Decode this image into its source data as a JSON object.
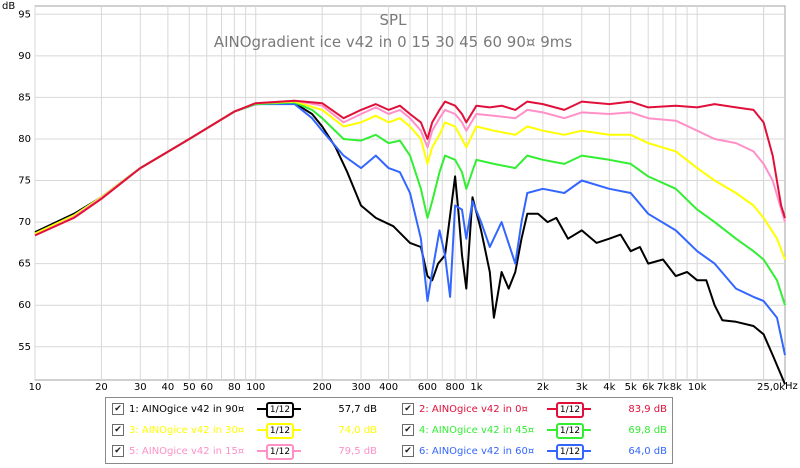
{
  "chart_data": {
    "type": "line",
    "y_unit_label": "dB",
    "x_unit_label": "Hz",
    "title": "SPL",
    "subtitle": "AINOgradient ice v42 in 0 15 30 45 60 90¤ 9ms",
    "x_scale": "log",
    "xlim": [
      10,
      25000
    ],
    "ylim": [
      51,
      96
    ],
    "grid": true,
    "y_ticks": [
      "95",
      "90",
      "85",
      "80",
      "75",
      "70",
      "65",
      "60",
      "55"
    ],
    "x_ticks": [
      "10",
      "20",
      "30",
      "40",
      "50",
      "60",
      "80",
      "100",
      "200",
      "300",
      "400",
      "600",
      "800",
      "1k",
      "2k",
      "3k",
      "4k",
      "5k",
      "6k",
      "7k",
      "8k",
      "10k",
      "25,0k"
    ],
    "series": [
      {
        "name": "1: AINOgice v42 in 90¤",
        "color": "#000000",
        "smoothing": "1/12",
        "level": "57,7 dB",
        "points": [
          [
            10,
            68.8
          ],
          [
            15,
            71
          ],
          [
            20,
            73
          ],
          [
            30,
            76.5
          ],
          [
            50,
            80
          ],
          [
            80,
            83.3
          ],
          [
            100,
            84.2
          ],
          [
            150,
            84.3
          ],
          [
            180,
            83
          ],
          [
            200,
            81.5
          ],
          [
            230,
            79
          ],
          [
            260,
            76
          ],
          [
            300,
            72
          ],
          [
            350,
            70.5
          ],
          [
            420,
            69.5
          ],
          [
            500,
            67.5
          ],
          [
            560,
            67
          ],
          [
            600,
            63.5
          ],
          [
            630,
            63
          ],
          [
            670,
            65
          ],
          [
            720,
            66
          ],
          [
            800,
            75.5
          ],
          [
            830,
            71
          ],
          [
            860,
            66
          ],
          [
            900,
            62
          ],
          [
            960,
            73
          ],
          [
            1050,
            69
          ],
          [
            1150,
            64
          ],
          [
            1200,
            58.5
          ],
          [
            1300,
            64
          ],
          [
            1400,
            62
          ],
          [
            1500,
            64
          ],
          [
            1600,
            68
          ],
          [
            1700,
            71
          ],
          [
            1900,
            71
          ],
          [
            2100,
            70
          ],
          [
            2300,
            70.5
          ],
          [
            2600,
            68
          ],
          [
            3000,
            69
          ],
          [
            3500,
            67.5
          ],
          [
            4000,
            68
          ],
          [
            4500,
            68.5
          ],
          [
            5000,
            66.5
          ],
          [
            5500,
            67
          ],
          [
            6000,
            65
          ],
          [
            7000,
            65.5
          ],
          [
            8000,
            63.5
          ],
          [
            9000,
            64
          ],
          [
            10000,
            63
          ],
          [
            11000,
            63
          ],
          [
            12000,
            60
          ],
          [
            13000,
            58.2
          ],
          [
            15000,
            58
          ],
          [
            18000,
            57.5
          ],
          [
            20000,
            56.5
          ],
          [
            22000,
            54
          ],
          [
            25000,
            50.5
          ]
        ]
      },
      {
        "name": "2: AINOgice v42 in 0¤",
        "color": "#e0103a",
        "smoothing": "1/12",
        "level": "83,9 dB",
        "points": [
          [
            10,
            68.4
          ],
          [
            15,
            70.5
          ],
          [
            20,
            72.8
          ],
          [
            30,
            76.5
          ],
          [
            50,
            80
          ],
          [
            80,
            83.3
          ],
          [
            100,
            84.3
          ],
          [
            150,
            84.6
          ],
          [
            200,
            84.3
          ],
          [
            250,
            82.5
          ],
          [
            300,
            83.5
          ],
          [
            350,
            84.2
          ],
          [
            400,
            83.5
          ],
          [
            450,
            84
          ],
          [
            500,
            83
          ],
          [
            560,
            82
          ],
          [
            600,
            80
          ],
          [
            630,
            82
          ],
          [
            680,
            83.5
          ],
          [
            720,
            84.5
          ],
          [
            800,
            84
          ],
          [
            860,
            83
          ],
          [
            900,
            82
          ],
          [
            1000,
            84
          ],
          [
            1150,
            83.8
          ],
          [
            1300,
            84
          ],
          [
            1500,
            83.5
          ],
          [
            1700,
            84.5
          ],
          [
            2000,
            84.2
          ],
          [
            2500,
            83.5
          ],
          [
            3000,
            84.5
          ],
          [
            4000,
            84.2
          ],
          [
            5000,
            84.5
          ],
          [
            6000,
            83.8
          ],
          [
            8000,
            84
          ],
          [
            10000,
            83.8
          ],
          [
            12000,
            84.2
          ],
          [
            15000,
            83.8
          ],
          [
            18000,
            83.5
          ],
          [
            20000,
            82
          ],
          [
            22000,
            78
          ],
          [
            24000,
            72
          ],
          [
            25000,
            70.5
          ]
        ]
      },
      {
        "name": "3: AINOgice v42 in 30¤",
        "color": "#ffff00",
        "smoothing": "1/12",
        "level": "74,0 dB",
        "points": [
          [
            10,
            68.6
          ],
          [
            15,
            70.8
          ],
          [
            20,
            73
          ],
          [
            30,
            76.5
          ],
          [
            50,
            80
          ],
          [
            80,
            83.3
          ],
          [
            100,
            84.3
          ],
          [
            150,
            84.5
          ],
          [
            200,
            83.5
          ],
          [
            250,
            81.5
          ],
          [
            300,
            82
          ],
          [
            350,
            82.8
          ],
          [
            400,
            82
          ],
          [
            450,
            82.5
          ],
          [
            500,
            81.5
          ],
          [
            560,
            80
          ],
          [
            600,
            77
          ],
          [
            630,
            79
          ],
          [
            680,
            80.5
          ],
          [
            720,
            82
          ],
          [
            800,
            81.5
          ],
          [
            860,
            80
          ],
          [
            900,
            79
          ],
          [
            1000,
            81.5
          ],
          [
            1200,
            81
          ],
          [
            1500,
            80.5
          ],
          [
            1700,
            81.5
          ],
          [
            2000,
            81
          ],
          [
            2500,
            80.5
          ],
          [
            3000,
            81
          ],
          [
            4000,
            80.5
          ],
          [
            5000,
            80.5
          ],
          [
            6000,
            79.5
          ],
          [
            8000,
            78.5
          ],
          [
            10000,
            76.5
          ],
          [
            12000,
            75
          ],
          [
            15000,
            73.5
          ],
          [
            18000,
            72
          ],
          [
            20000,
            70.5
          ],
          [
            23000,
            68
          ],
          [
            25000,
            65.5
          ]
        ]
      },
      {
        "name": "4: AINOgice v42 in 45¤",
        "color": "#33ee33",
        "smoothing": "1/12",
        "level": "69,8 dB",
        "points": [
          [
            10,
            68.6
          ],
          [
            15,
            70.8
          ],
          [
            20,
            73
          ],
          [
            30,
            76.5
          ],
          [
            50,
            80
          ],
          [
            80,
            83.3
          ],
          [
            100,
            84.2
          ],
          [
            150,
            84.4
          ],
          [
            180,
            83.5
          ],
          [
            200,
            82.5
          ],
          [
            250,
            80
          ],
          [
            300,
            79.8
          ],
          [
            350,
            80.5
          ],
          [
            400,
            79.5
          ],
          [
            450,
            79.8
          ],
          [
            500,
            78
          ],
          [
            560,
            74
          ],
          [
            600,
            70.5
          ],
          [
            630,
            72.5
          ],
          [
            680,
            76
          ],
          [
            720,
            78
          ],
          [
            800,
            77.5
          ],
          [
            860,
            76
          ],
          [
            900,
            74
          ],
          [
            1000,
            77.5
          ],
          [
            1200,
            77
          ],
          [
            1500,
            76.5
          ],
          [
            1700,
            78
          ],
          [
            2000,
            77.5
          ],
          [
            2500,
            77
          ],
          [
            3000,
            78
          ],
          [
            4000,
            77.5
          ],
          [
            5000,
            77
          ],
          [
            6000,
            75.5
          ],
          [
            8000,
            74
          ],
          [
            10000,
            71.5
          ],
          [
            12000,
            70
          ],
          [
            15000,
            68
          ],
          [
            18000,
            66.5
          ],
          [
            20000,
            65.5
          ],
          [
            23000,
            63
          ],
          [
            25000,
            60
          ]
        ]
      },
      {
        "name": "5: AINOgice v42 in 15¤",
        "color": "#ff90c8",
        "smoothing": "1/12",
        "level": "79,5 dB",
        "points": [
          [
            10,
            68.4
          ],
          [
            15,
            70.6
          ],
          [
            20,
            72.9
          ],
          [
            30,
            76.5
          ],
          [
            50,
            80
          ],
          [
            80,
            83.3
          ],
          [
            100,
            84.3
          ],
          [
            150,
            84.6
          ],
          [
            200,
            84
          ],
          [
            250,
            82
          ],
          [
            300,
            83
          ],
          [
            350,
            83.8
          ],
          [
            400,
            83
          ],
          [
            450,
            83.5
          ],
          [
            500,
            82.5
          ],
          [
            560,
            81
          ],
          [
            600,
            79
          ],
          [
            630,
            81
          ],
          [
            680,
            82.5
          ],
          [
            720,
            83.5
          ],
          [
            800,
            83
          ],
          [
            860,
            82
          ],
          [
            900,
            81
          ],
          [
            1000,
            83
          ],
          [
            1200,
            82.8
          ],
          [
            1500,
            82.5
          ],
          [
            1700,
            83.5
          ],
          [
            2000,
            83.2
          ],
          [
            2500,
            82.5
          ],
          [
            3000,
            83.2
          ],
          [
            4000,
            83
          ],
          [
            5000,
            83.2
          ],
          [
            6000,
            82.5
          ],
          [
            8000,
            82.2
          ],
          [
            10000,
            81
          ],
          [
            12000,
            80
          ],
          [
            15000,
            79.5
          ],
          [
            18000,
            78.5
          ],
          [
            20000,
            77
          ],
          [
            22000,
            75
          ],
          [
            25000,
            70
          ]
        ]
      },
      {
        "name": "6: AINOgice v42 in 60¤",
        "color": "#3366ff",
        "smoothing": "1/12",
        "level": "64,0 dB",
        "points": [
          [
            10,
            68.6
          ],
          [
            15,
            70.8
          ],
          [
            20,
            73
          ],
          [
            30,
            76.5
          ],
          [
            50,
            80
          ],
          [
            80,
            83.3
          ],
          [
            100,
            84.2
          ],
          [
            150,
            84.2
          ],
          [
            180,
            82.5
          ],
          [
            200,
            81
          ],
          [
            250,
            78
          ],
          [
            300,
            76.5
          ],
          [
            350,
            78
          ],
          [
            400,
            76.5
          ],
          [
            450,
            76
          ],
          [
            500,
            73.5
          ],
          [
            560,
            68
          ],
          [
            600,
            60.5
          ],
          [
            630,
            64
          ],
          [
            680,
            69
          ],
          [
            720,
            66
          ],
          [
            760,
            61
          ],
          [
            800,
            72
          ],
          [
            860,
            71.5
          ],
          [
            900,
            68
          ],
          [
            960,
            72.5
          ],
          [
            1050,
            70
          ],
          [
            1150,
            67
          ],
          [
            1300,
            70
          ],
          [
            1500,
            65
          ],
          [
            1600,
            70
          ],
          [
            1700,
            73.5
          ],
          [
            2000,
            74
          ],
          [
            2500,
            73.5
          ],
          [
            3000,
            75
          ],
          [
            4000,
            74
          ],
          [
            5000,
            73.5
          ],
          [
            6000,
            71
          ],
          [
            8000,
            69
          ],
          [
            10000,
            66.5
          ],
          [
            12000,
            65
          ],
          [
            15000,
            62
          ],
          [
            18000,
            61
          ],
          [
            20000,
            60.5
          ],
          [
            23000,
            58.5
          ],
          [
            25000,
            54
          ]
        ]
      }
    ]
  }
}
